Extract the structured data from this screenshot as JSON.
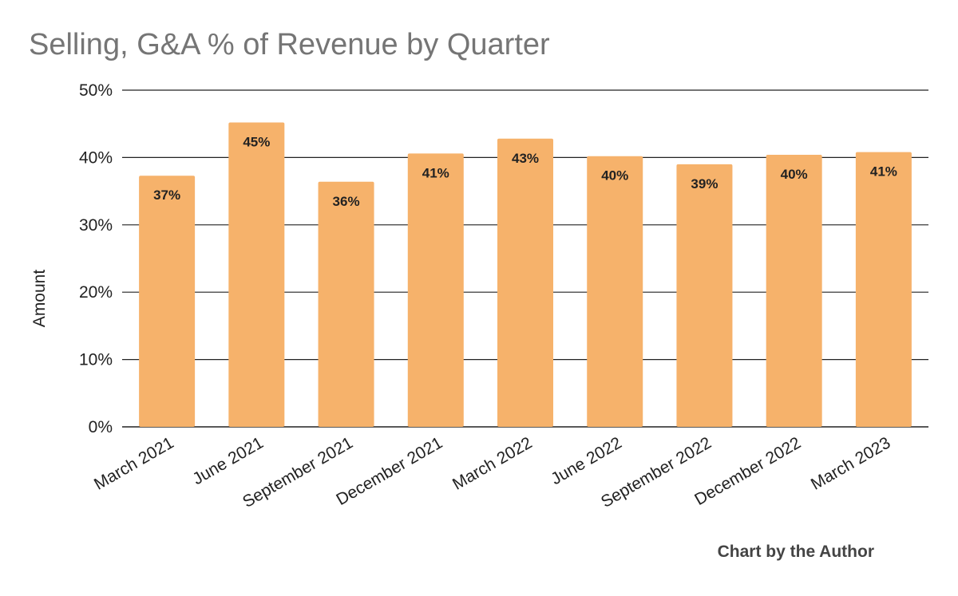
{
  "chart_data": {
    "type": "bar",
    "title": "Selling, G&A % of Revenue by Quarter",
    "xlabel": "",
    "ylabel": "Amount",
    "categories": [
      "March 2021",
      "June 2021",
      "September 2021",
      "December 2021",
      "March 2022",
      "June 2022",
      "September 2022",
      "December 2022",
      "March 2023"
    ],
    "values": [
      37.3,
      45.2,
      36.4,
      40.6,
      42.8,
      40.2,
      39.0,
      40.4,
      40.8
    ],
    "data_labels": [
      "37%",
      "45%",
      "36%",
      "41%",
      "43%",
      "40%",
      "39%",
      "40%",
      "41%"
    ],
    "yticks": [
      0,
      10,
      20,
      30,
      40,
      50
    ],
    "ytick_labels": [
      "0%",
      "10%",
      "20%",
      "30%",
      "40%",
      "50%"
    ],
    "ylim": [
      0,
      50
    ],
    "grid": true,
    "legend": "none",
    "bar_color": "#f6b26b",
    "gridline_color": "#222222"
  },
  "footer": {
    "credit": "Chart by the Author"
  }
}
